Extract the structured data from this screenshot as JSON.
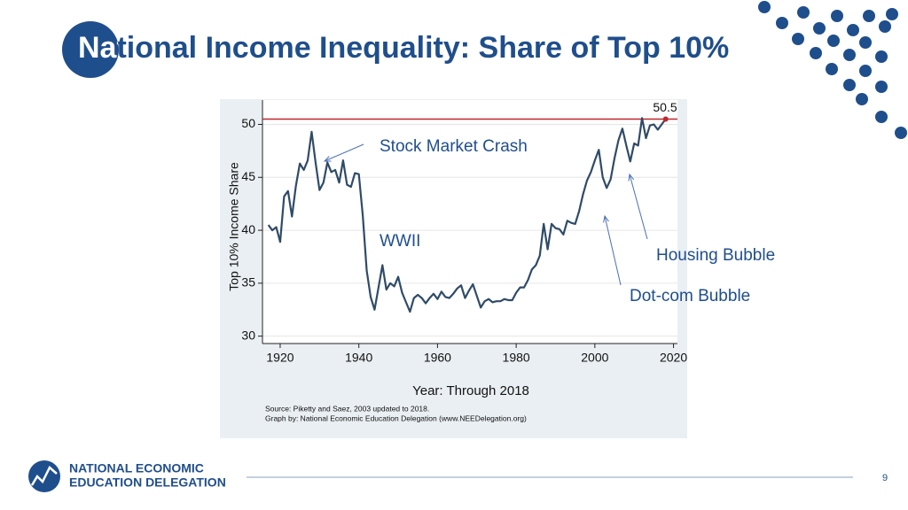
{
  "slide": {
    "title": "National Income Inequality: Share of Top 10%",
    "logo_line1": "NATIONAL ECONOMIC",
    "logo_line2": "EDUCATION DELEGATION",
    "page_number": "9"
  },
  "chart_data": {
    "type": "line",
    "xlabel": "Year: Through 2018",
    "ylabel": "Top 10% Income Share",
    "x": [
      1917,
      1918,
      1919,
      1920,
      1921,
      1922,
      1923,
      1924,
      1925,
      1926,
      1927,
      1928,
      1929,
      1930,
      1931,
      1932,
      1933,
      1934,
      1935,
      1936,
      1937,
      1938,
      1939,
      1940,
      1941,
      1942,
      1943,
      1944,
      1945,
      1946,
      1947,
      1948,
      1949,
      1950,
      1951,
      1952,
      1953,
      1954,
      1955,
      1956,
      1957,
      1958,
      1959,
      1960,
      1961,
      1962,
      1963,
      1964,
      1965,
      1966,
      1967,
      1968,
      1969,
      1970,
      1971,
      1972,
      1973,
      1974,
      1975,
      1976,
      1977,
      1978,
      1979,
      1980,
      1981,
      1982,
      1983,
      1984,
      1985,
      1986,
      1987,
      1988,
      1989,
      1990,
      1991,
      1992,
      1993,
      1994,
      1995,
      1996,
      1997,
      1998,
      1999,
      2000,
      2001,
      2002,
      2003,
      2004,
      2005,
      2006,
      2007,
      2008,
      2009,
      2010,
      2011,
      2012,
      2013,
      2014,
      2015,
      2016,
      2017,
      2018
    ],
    "values": [
      40.5,
      40.0,
      40.3,
      38.9,
      43.2,
      43.7,
      41.3,
      44.2,
      46.3,
      45.7,
      46.6,
      49.3,
      46.4,
      43.8,
      44.5,
      46.4,
      45.5,
      45.7,
      44.5,
      46.6,
      44.3,
      44.1,
      45.4,
      45.3,
      41.4,
      36.2,
      33.7,
      32.5,
      34.6,
      36.7,
      34.4,
      35.0,
      34.7,
      35.6,
      34.1,
      33.2,
      32.3,
      33.6,
      33.9,
      33.6,
      33.1,
      33.6,
      34.0,
      33.5,
      34.2,
      33.7,
      33.6,
      34.0,
      34.5,
      34.8,
      33.6,
      34.3,
      34.9,
      33.8,
      32.7,
      33.3,
      33.5,
      33.2,
      33.3,
      33.3,
      33.5,
      33.4,
      33.4,
      34.1,
      34.6,
      34.6,
      35.3,
      36.3,
      36.7,
      37.6,
      40.6,
      38.2,
      40.6,
      40.2,
      40.1,
      39.6,
      40.9,
      40.7,
      40.6,
      41.8,
      43.4,
      44.7,
      45.5,
      46.6,
      47.6,
      45.0,
      44.0,
      44.8,
      46.8,
      48.5,
      49.6,
      48.0,
      46.5,
      48.2,
      48.0,
      50.6,
      48.7,
      49.9,
      50.0,
      49.5,
      50.0,
      50.5
    ],
    "color": "#2f4b68",
    "xlim": [
      1915.5,
      2021
    ],
    "xticks": [
      1920,
      1940,
      1960,
      1980,
      2000,
      2020
    ],
    "ylim": [
      29.3,
      52.3
    ],
    "yticks": [
      30,
      35,
      40,
      45,
      50
    ],
    "grid": true,
    "reference_line": 50.5,
    "reference_color": "#c0272d",
    "annotations": [
      "Stock Market Crash",
      "WWII",
      "Housing Bubble",
      "Dot-com Bubble"
    ],
    "source": [
      "Source: Piketty and Saez, 2003 updated to 2018.",
      "Graph by: National Economic Education Delegation (www.NEEDelegation.org)"
    ]
  }
}
